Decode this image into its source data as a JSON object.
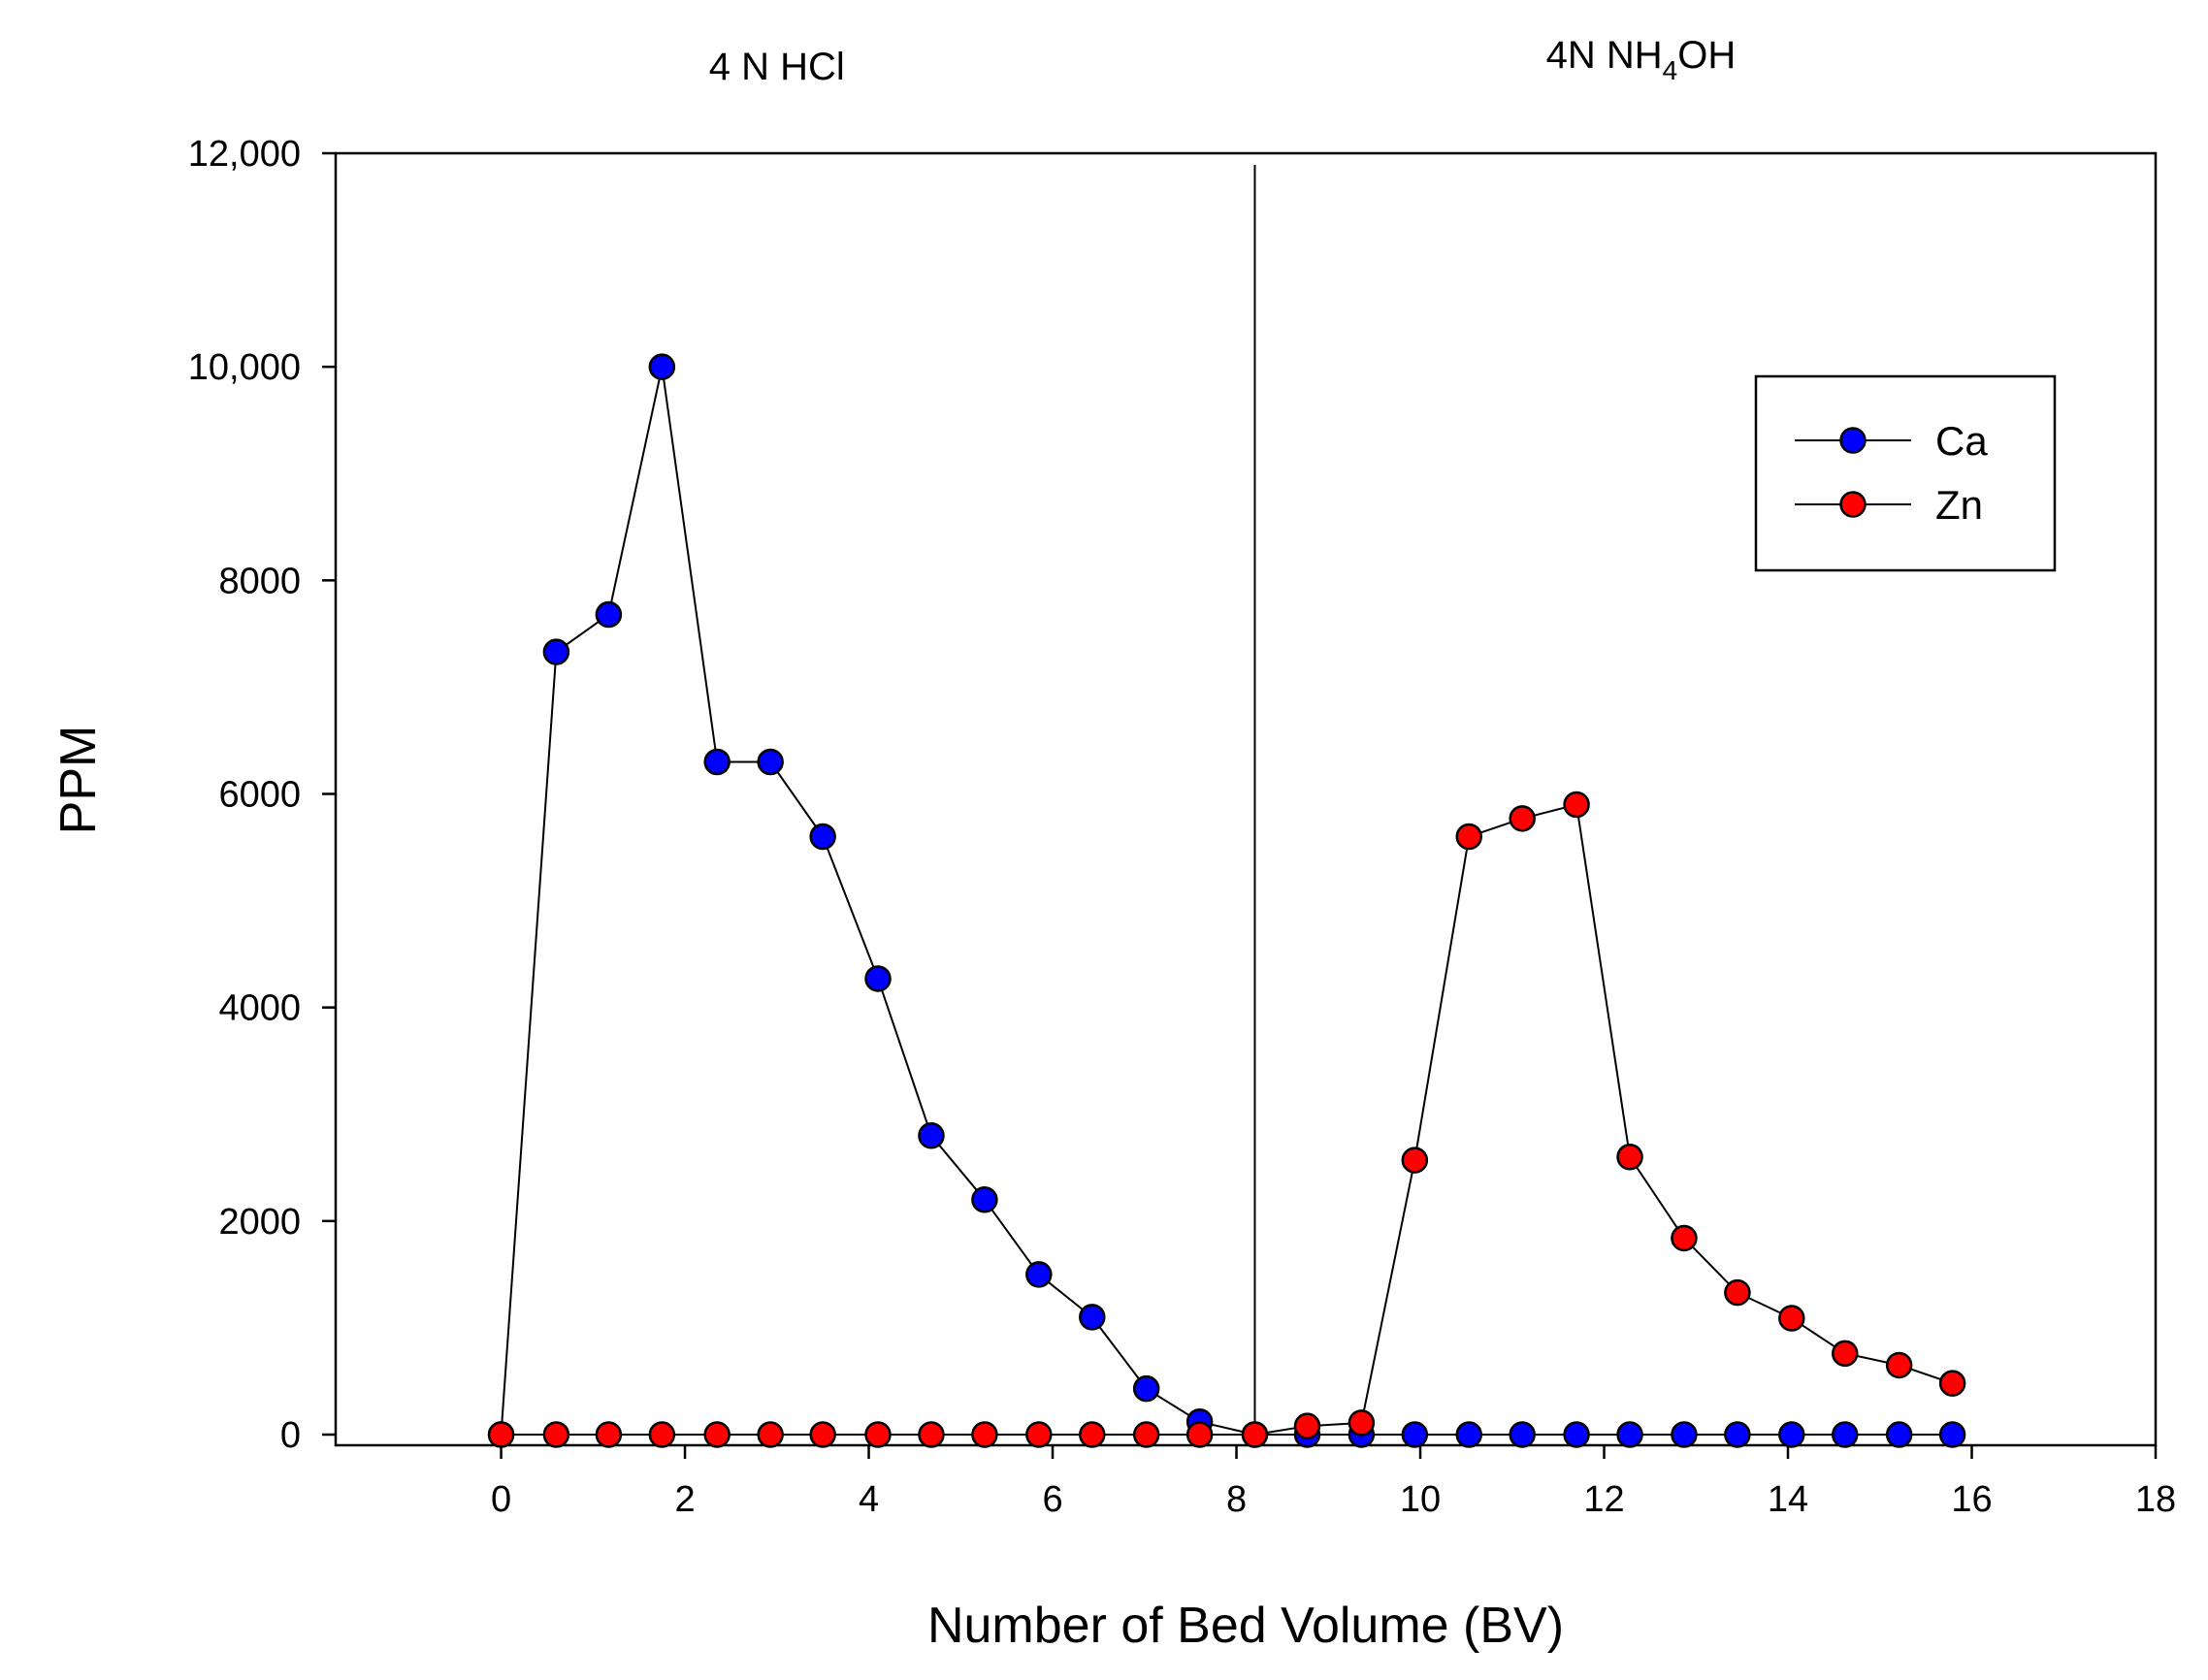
{
  "chart_data": {
    "type": "line",
    "title": "",
    "xlabel": "Number of Bed Volume (BV)",
    "ylabel": "PPM",
    "xlim": [
      -1.8,
      18
    ],
    "ylim": [
      -100,
      12000
    ],
    "grid": false,
    "legend_position": "top-right",
    "x_ticks": [
      0,
      2,
      4,
      6,
      8,
      10,
      12,
      14,
      16,
      18
    ],
    "x_tick_labels": [
      "0",
      "2",
      "4",
      "6",
      "8",
      "10",
      "12",
      "14",
      "16",
      "18"
    ],
    "y_ticks": [
      0,
      2000,
      4000,
      6000,
      8000,
      10000,
      12000
    ],
    "y_tick_labels": [
      "0",
      "2000",
      "4000",
      "6000",
      "8000",
      "10,000",
      "12,000"
    ],
    "divider_x": 8.2,
    "annotations": [
      {
        "text": "4 N HCl",
        "x": 3,
        "region": "left"
      },
      {
        "text_main": "4N NH",
        "text_sub": "4",
        "text_tail": "OH",
        "x": 12.4,
        "region": "right"
      }
    ],
    "series": [
      {
        "name": "Ca",
        "color": "#0000ff",
        "x": [
          0,
          0.6,
          1.17,
          1.75,
          2.35,
          2.93,
          3.5,
          4.1,
          4.68,
          5.26,
          5.85,
          6.43,
          7.02,
          7.6,
          8.2,
          8.77,
          9.36,
          9.94,
          10.53,
          11.11,
          11.7,
          12.28,
          12.87,
          13.45,
          14.04,
          14.62,
          15.21,
          15.79
        ],
        "values": [
          0,
          7330,
          7680,
          10000,
          6300,
          6300,
          5600,
          4270,
          2800,
          2200,
          1500,
          1100,
          430,
          120,
          0,
          0,
          0,
          0,
          0,
          0,
          0,
          0,
          0,
          0,
          0,
          0,
          0,
          0
        ]
      },
      {
        "name": "Zn",
        "color": "#ff0000",
        "x": [
          0,
          0.6,
          1.17,
          1.75,
          2.35,
          2.93,
          3.5,
          4.1,
          4.68,
          5.26,
          5.85,
          6.43,
          7.02,
          7.6,
          8.2,
          8.77,
          9.36,
          9.94,
          10.53,
          11.11,
          11.7,
          12.28,
          12.87,
          13.45,
          14.04,
          14.62,
          15.21,
          15.79
        ],
        "values": [
          0,
          0,
          0,
          0,
          0,
          0,
          0,
          0,
          0,
          0,
          0,
          0,
          0,
          0,
          0,
          80,
          110,
          2570,
          5600,
          5770,
          5900,
          2600,
          1840,
          1330,
          1090,
          760,
          650,
          480
        ]
      }
    ]
  }
}
